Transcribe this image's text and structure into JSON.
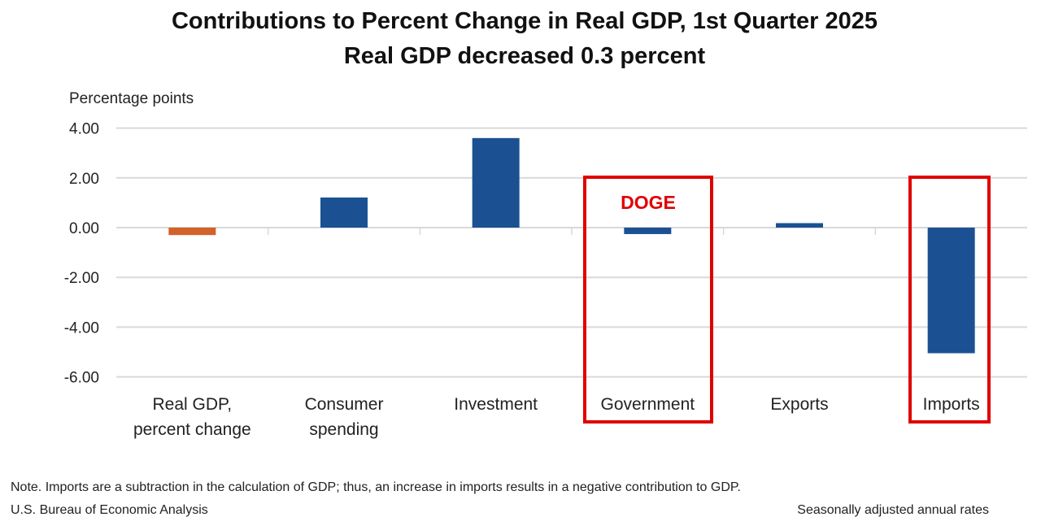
{
  "chart_data": {
    "type": "bar",
    "title": "Contributions to Percent Change in Real GDP, 1st Quarter 2025",
    "subtitle": "Real GDP decreased 0.3 percent",
    "ylabel": "Percentage points",
    "xlabel": "",
    "ylim": [
      -6,
      4
    ],
    "yticks": [
      "4.00",
      "2.00",
      "0.00",
      "-2.00",
      "-4.00",
      "-6.00"
    ],
    "ytick_values": [
      4,
      2,
      0,
      -2,
      -4,
      -6
    ],
    "grid": true,
    "categories": [
      "Real GDP, percent change",
      "Consumer spending",
      "Investment",
      "Government",
      "Exports",
      "Imports"
    ],
    "category_lines": [
      [
        "Real GDP,",
        "percent change"
      ],
      [
        "Consumer",
        "spending"
      ],
      [
        "Investment"
      ],
      [
        "Government"
      ],
      [
        "Exports"
      ],
      [
        "Imports"
      ]
    ],
    "values": [
      -0.3,
      1.21,
      3.6,
      -0.26,
      0.18,
      -5.05
    ],
    "bar_colors": [
      "#d2622a",
      "#1b5193",
      "#1b5193",
      "#1b5193",
      "#1b5193",
      "#1b5193"
    ],
    "annotations": [
      {
        "text": "DOGE",
        "target": "Government",
        "color": "#e00000"
      },
      {
        "text": "",
        "target": "Imports",
        "color": "#e00000"
      }
    ]
  },
  "footer": {
    "note": "Note. Imports are a subtraction in the calculation of GDP; thus, an increase in imports results in a negative contribution to GDP.",
    "source": "U.S. Bureau of Economic Analysis",
    "rates": "Seasonally adjusted annual rates"
  }
}
